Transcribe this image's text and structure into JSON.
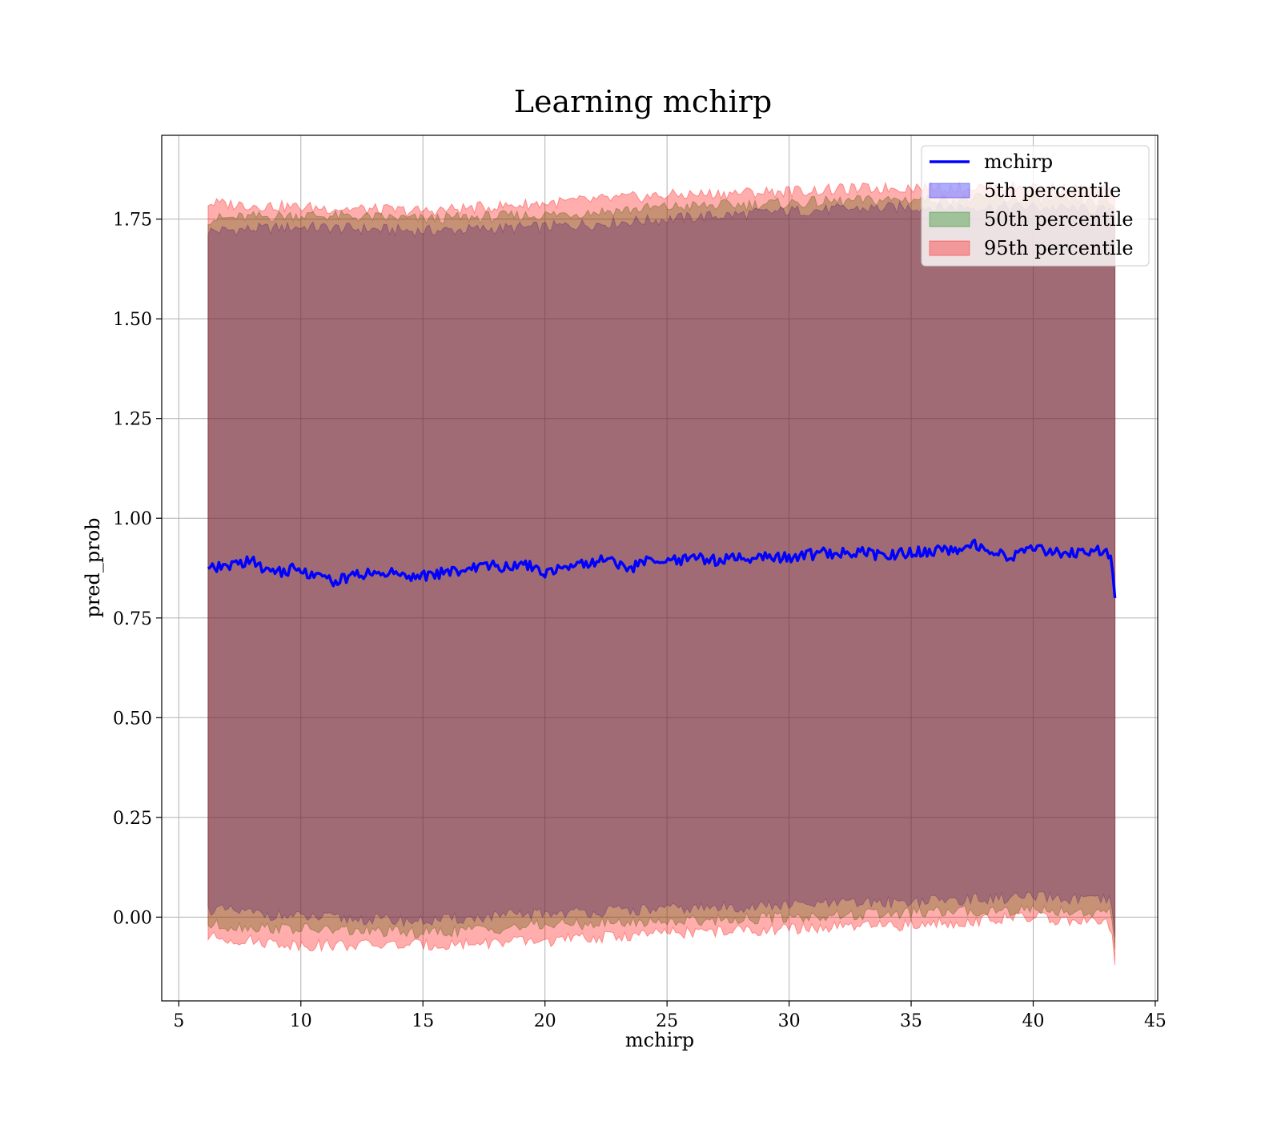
{
  "chart_data": {
    "type": "line",
    "title": "Learning mchirp",
    "xlabel": "mchirp",
    "ylabel": "pred_prob",
    "xlim": [
      4.3,
      45.1
    ],
    "ylim": [
      -0.21,
      1.96
    ],
    "xticks": [
      5,
      10,
      15,
      20,
      25,
      30,
      35,
      40,
      45
    ],
    "yticks": [
      0.0,
      0.25,
      0.5,
      0.75,
      1.0,
      1.25,
      1.5,
      1.75
    ],
    "xtick_labels": [
      "5",
      "10",
      "15",
      "20",
      "25",
      "30",
      "35",
      "40",
      "45"
    ],
    "ytick_labels": [
      "0.00",
      "0.25",
      "0.50",
      "0.75",
      "1.00",
      "1.25",
      "1.50",
      "1.75"
    ],
    "grid": true,
    "legend_position": "top-right",
    "legend": [
      {
        "label": "mchirp",
        "kind": "line",
        "color": "#0000ff"
      },
      {
        "label": "5th percentile",
        "kind": "band",
        "color": "#0000ff"
      },
      {
        "label": "50th percentile",
        "kind": "band",
        "color": "#008000"
      },
      {
        "label": "95th percentile",
        "kind": "band",
        "color": "#ff0000"
      }
    ],
    "series": [
      {
        "name": "mchirp",
        "color": "#0000ff",
        "x": [
          6.2,
          7.0,
          8.0,
          8.5,
          9.0,
          10.0,
          10.5,
          11.0,
          11.5,
          12.0,
          12.5,
          13.0,
          14.0,
          15.0,
          16.0,
          17.0,
          18.0,
          18.5,
          19.0,
          19.5,
          20.0,
          20.5,
          21.0,
          22.0,
          22.5,
          23.0,
          23.5,
          24.0,
          25.0,
          26.0,
          27.0,
          28.0,
          29.0,
          30.0,
          31.0,
          32.0,
          33.0,
          34.0,
          35.0,
          36.0,
          37.0,
          37.7,
          38.5,
          39.0,
          40.0,
          41.0,
          42.0,
          42.5,
          43.0,
          43.2,
          43.35
        ],
        "y": [
          0.87,
          0.88,
          0.895,
          0.87,
          0.865,
          0.875,
          0.855,
          0.85,
          0.84,
          0.855,
          0.86,
          0.865,
          0.86,
          0.855,
          0.865,
          0.875,
          0.88,
          0.875,
          0.89,
          0.875,
          0.865,
          0.875,
          0.885,
          0.89,
          0.9,
          0.885,
          0.87,
          0.895,
          0.89,
          0.9,
          0.895,
          0.9,
          0.905,
          0.9,
          0.91,
          0.915,
          0.915,
          0.905,
          0.915,
          0.92,
          0.925,
          0.935,
          0.915,
          0.905,
          0.92,
          0.915,
          0.915,
          0.92,
          0.91,
          0.905,
          0.8
        ]
      },
      {
        "name": "5th percentile",
        "color": "#0000ff",
        "x": [
          6.2,
          10.0,
          15.0,
          20.0,
          25.0,
          30.0,
          35.0,
          40.0,
          43.2,
          43.35
        ],
        "lower": [
          0.02,
          0.0,
          -0.01,
          0.01,
          0.02,
          0.03,
          0.04,
          0.05,
          0.04,
          -0.05
        ],
        "upper": [
          1.72,
          1.73,
          1.72,
          1.73,
          1.75,
          1.77,
          1.78,
          1.78,
          1.77,
          1.75
        ]
      },
      {
        "name": "50th percentile",
        "color": "#008000",
        "x": [
          6.2,
          10.0,
          15.0,
          20.0,
          25.0,
          30.0,
          35.0,
          40.0,
          43.2,
          43.35
        ],
        "lower": [
          -0.02,
          -0.03,
          -0.04,
          -0.02,
          -0.01,
          0.0,
          0.01,
          0.02,
          0.01,
          -0.08
        ],
        "upper": [
          1.75,
          1.76,
          1.75,
          1.76,
          1.78,
          1.79,
          1.8,
          1.8,
          1.79,
          1.77
        ]
      },
      {
        "name": "95th percentile",
        "color": "#ff0000",
        "x": [
          6.2,
          10.0,
          15.0,
          20.0,
          25.0,
          30.0,
          35.0,
          40.0,
          43.2,
          43.35
        ],
        "lower": [
          -0.05,
          -0.07,
          -0.07,
          -0.06,
          -0.04,
          -0.03,
          -0.02,
          0.0,
          -0.02,
          -0.12
        ],
        "upper": [
          1.79,
          1.78,
          1.77,
          1.79,
          1.81,
          1.82,
          1.83,
          1.83,
          1.82,
          1.8
        ]
      }
    ]
  }
}
